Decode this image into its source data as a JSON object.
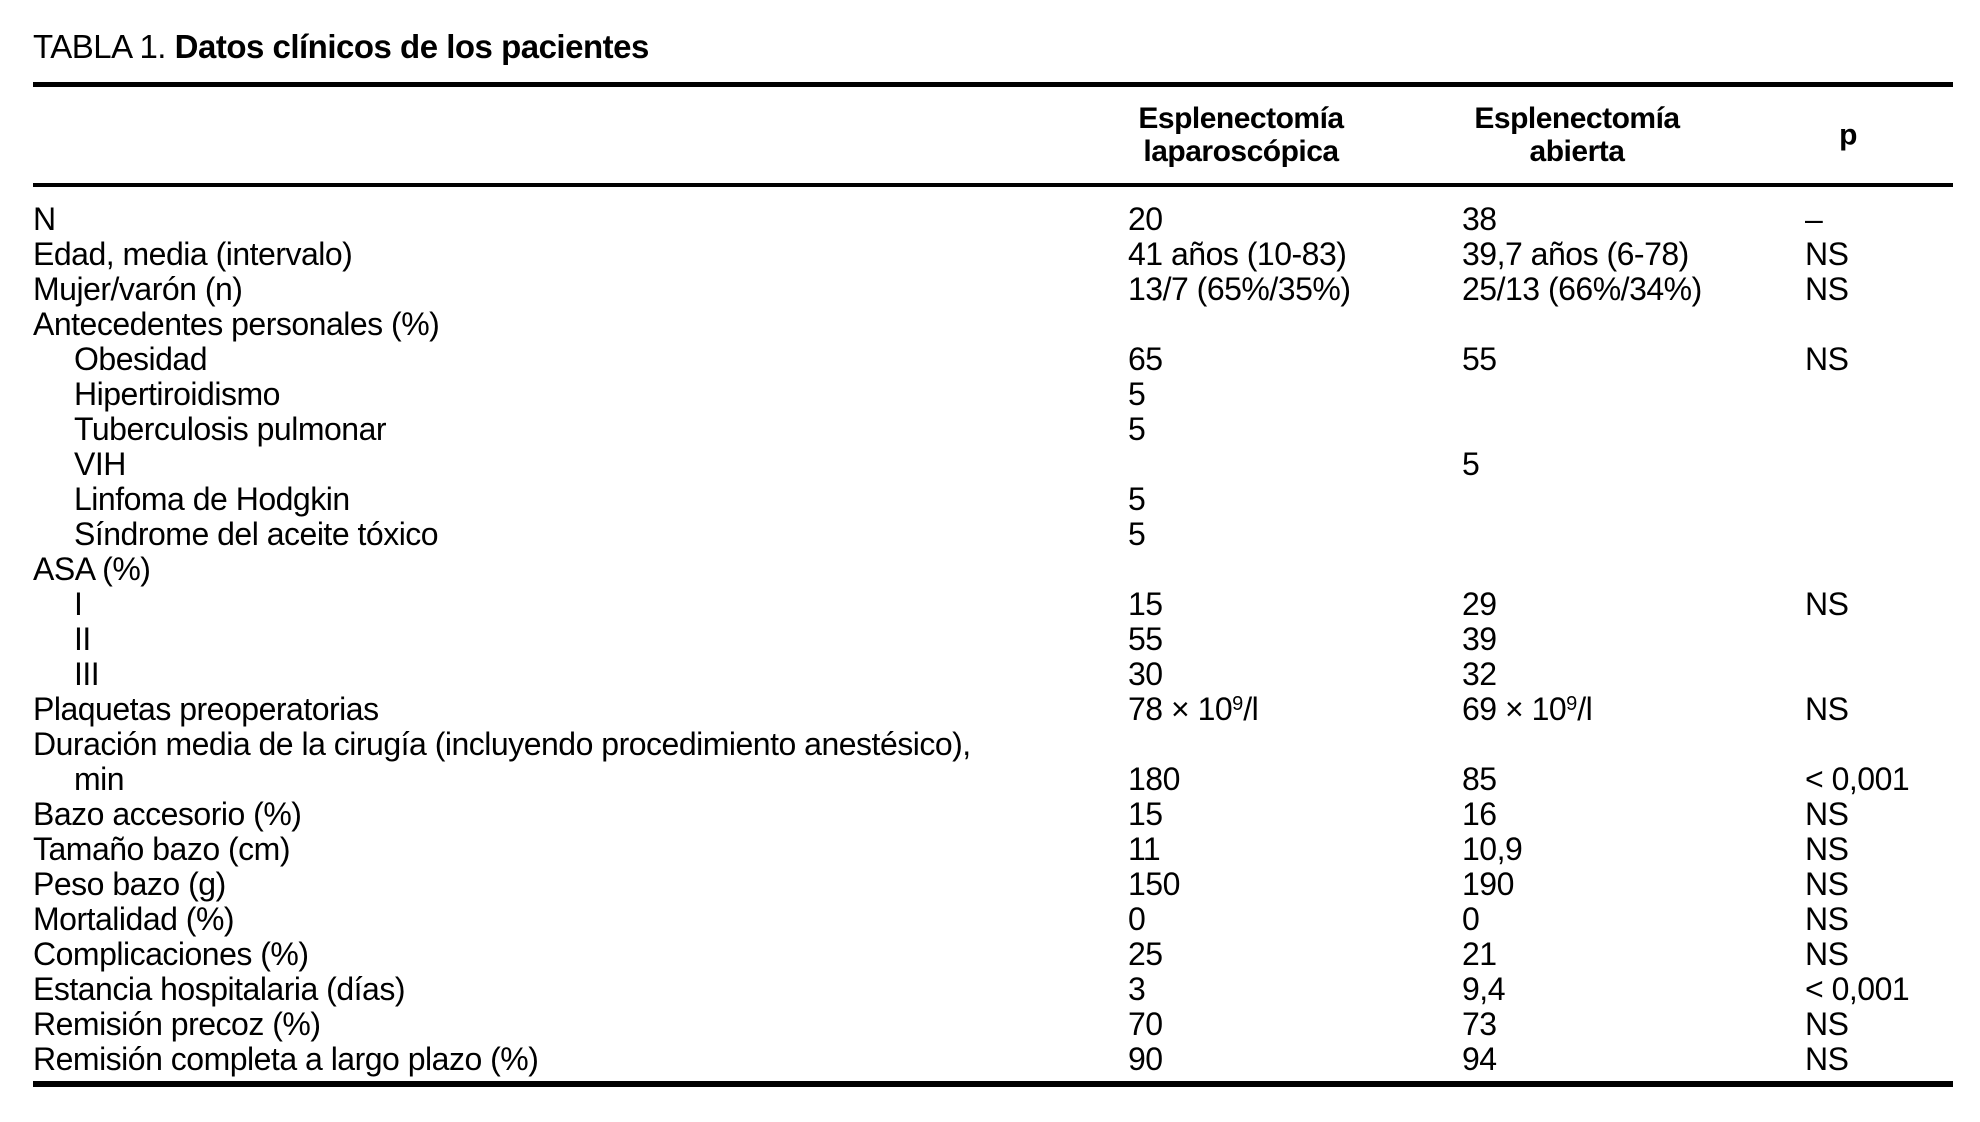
{
  "page": {
    "background": "#ffffff",
    "text_color": "#000000"
  },
  "title": {
    "prefix": "TABLA 1.",
    "text": "Datos clínicos de los pacientes"
  },
  "table": {
    "header": {
      "laparoscopic": {
        "line1": "Esplenectomía",
        "line2": "laparoscópica"
      },
      "open": {
        "line1": "Esplenectomía",
        "line2": "abierta"
      },
      "p": "p"
    },
    "rows": [
      {
        "label": "N",
        "indent": false,
        "lap": "20",
        "open": "38",
        "p": "–"
      },
      {
        "label": "Edad, media (intervalo)",
        "indent": false,
        "lap": "41 años (10-83)",
        "open": "39,7 años (6-78)",
        "p": "NS"
      },
      {
        "label": "Mujer/varón (n)",
        "indent": false,
        "lap": "13/7 (65%/35%)",
        "open": "25/13 (66%/34%)",
        "p": "NS"
      },
      {
        "label": "Antecedentes personales (%)",
        "indent": false,
        "lap": "",
        "open": "",
        "p": ""
      },
      {
        "label": "Obesidad",
        "indent": true,
        "lap": "65",
        "open": "55",
        "p": "NS"
      },
      {
        "label": "Hipertiroidismo",
        "indent": true,
        "lap": "5",
        "open": "",
        "p": ""
      },
      {
        "label": "Tuberculosis pulmonar",
        "indent": true,
        "lap": "5",
        "open": "",
        "p": ""
      },
      {
        "label": "VIH",
        "indent": true,
        "lap": "",
        "open": "5",
        "p": ""
      },
      {
        "label": "Linfoma de Hodgkin",
        "indent": true,
        "lap": "5",
        "open": "",
        "p": ""
      },
      {
        "label": "Síndrome del aceite tóxico",
        "indent": true,
        "lap": "5",
        "open": "",
        "p": ""
      },
      {
        "label": "ASA (%)",
        "indent": false,
        "lap": "",
        "open": "",
        "p": ""
      },
      {
        "label": "I",
        "indent": true,
        "lap": "15",
        "open": "29",
        "p": "NS"
      },
      {
        "label": "II",
        "indent": true,
        "lap": "55",
        "open": "39",
        "p": ""
      },
      {
        "label": "III",
        "indent": true,
        "lap": "30",
        "open": "32",
        "p": ""
      },
      {
        "label": "Plaquetas preoperatorias",
        "indent": false,
        "lap": {
          "pre": "78 × 10",
          "sup": "9",
          "post": "/l"
        },
        "open": {
          "pre": "69 × 10",
          "sup": "9",
          "post": "/l"
        },
        "p": "NS"
      },
      {
        "label": "Duración media de la cirugía (incluyendo procedimiento anestésico),",
        "indent": false,
        "lap": "",
        "open": "",
        "p": ""
      },
      {
        "label": "min",
        "indent": true,
        "lap": "180",
        "open": "85",
        "p": "< 0,001"
      },
      {
        "label": "Bazo accesorio (%)",
        "indent": false,
        "lap": "15",
        "open": "16",
        "p": "NS"
      },
      {
        "label": "Tamaño bazo (cm)",
        "indent": false,
        "lap": "11",
        "open": "10,9",
        "p": "NS"
      },
      {
        "label": "Peso bazo (g)",
        "indent": false,
        "lap": "150",
        "open": "190",
        "p": "NS"
      },
      {
        "label": "Mortalidad (%)",
        "indent": false,
        "lap": "0",
        "open": "0",
        "p": "NS"
      },
      {
        "label": "Complicaciones (%)",
        "indent": false,
        "lap": "25",
        "open": "21",
        "p": "NS"
      },
      {
        "label": "Estancia hospitalaria (días)",
        "indent": false,
        "lap": "3",
        "open": "9,4",
        "p": "< 0,001"
      },
      {
        "label": "Remisión precoz (%)",
        "indent": false,
        "lap": "70",
        "open": "73",
        "p": "NS"
      },
      {
        "label": "Remisión completa a largo plazo (%)",
        "indent": false,
        "lap": "90",
        "open": "94",
        "p": "NS"
      }
    ]
  }
}
